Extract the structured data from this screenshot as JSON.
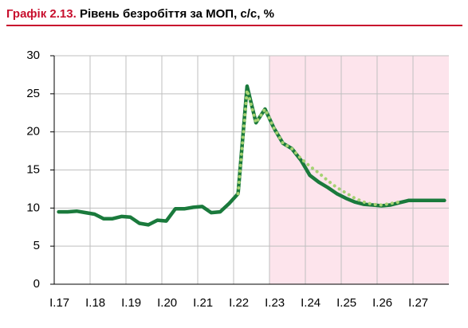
{
  "chart_data": {
    "type": "line",
    "title": {
      "number": "Графік 2.13.",
      "text": "Рівень безробіття за МОП, с/с, %"
    },
    "categories": [
      "I.17",
      null,
      null,
      null,
      "I.18",
      null,
      null,
      null,
      "I.19",
      null,
      null,
      null,
      "I.20",
      null,
      null,
      null,
      "I.21",
      null,
      null,
      null,
      "I.22",
      null,
      null,
      null,
      "I.23",
      null,
      null,
      null,
      "I.24",
      null,
      null,
      null,
      "I.25",
      null,
      null,
      null,
      "I.26",
      null,
      null,
      null,
      "I.27",
      null,
      null,
      null
    ],
    "series": [
      {
        "color": "#1a7a3c",
        "style": "solid",
        "values": [
          9.5,
          9.5,
          9.6,
          9.4,
          9.2,
          8.6,
          8.6,
          8.9,
          8.8,
          8.0,
          7.8,
          8.4,
          8.3,
          9.9,
          9.9,
          10.1,
          10.2,
          9.4,
          9.5,
          10.6,
          11.9,
          26.0,
          21.2,
          23.0,
          20.5,
          18.5,
          17.8,
          16.3,
          14.3,
          13.4,
          12.7,
          11.9,
          11.3,
          10.8,
          10.5,
          10.4,
          10.3,
          10.4,
          10.7,
          11.0,
          11.0,
          11.0,
          11.0,
          11.0
        ]
      },
      {
        "color": "#a6d273",
        "style": "dotted",
        "values": [
          null,
          null,
          null,
          null,
          null,
          null,
          null,
          null,
          null,
          null,
          null,
          null,
          null,
          null,
          null,
          null,
          null,
          null,
          null,
          null,
          11.9,
          25.5,
          21.2,
          23.0,
          20.5,
          18.5,
          17.8,
          16.5,
          15.5,
          14.6,
          13.6,
          12.7,
          12.0,
          11.3,
          10.8,
          10.5,
          10.4,
          10.6,
          10.8,
          null,
          null,
          null,
          null,
          null
        ]
      }
    ],
    "ylim": [
      0,
      30
    ],
    "yticks": [
      0,
      5,
      10,
      15,
      20,
      25,
      30
    ],
    "grid": true,
    "shade_start": "I.23",
    "shade_color": "#fde4ec"
  }
}
